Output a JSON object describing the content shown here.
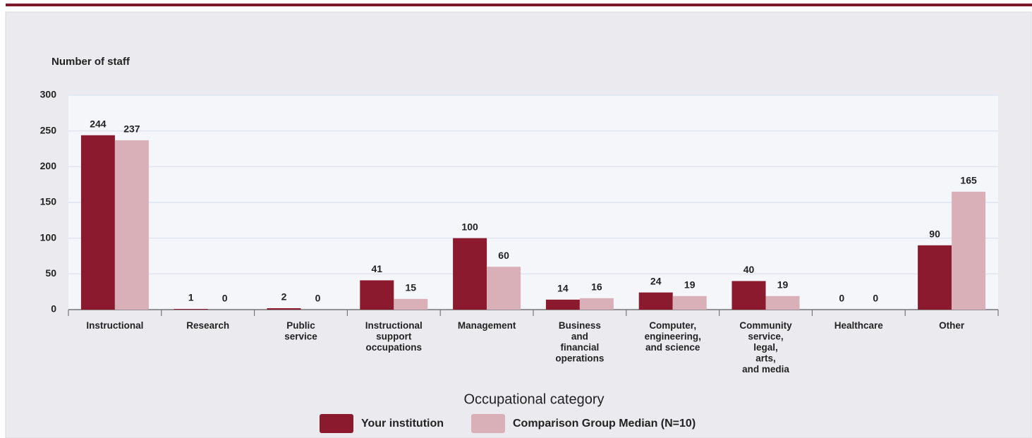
{
  "chart_data": {
    "type": "bar",
    "y_axis_label": "Number of staff",
    "x_axis_label": "Occupational category",
    "categories": [
      "Instructional",
      "Research",
      "Public\nservice",
      "Instructional\nsupport\noccupations",
      "Management",
      "Business\nand\nfinancial\noperations",
      "Computer,\nengineering,\nand science",
      "Community\nservice,\nlegal,\narts,\nand media",
      "Healthcare",
      "Other"
    ],
    "series": [
      {
        "name": "Your institution",
        "color": "#8b1a2e",
        "values": [
          244,
          1,
          2,
          41,
          100,
          14,
          24,
          40,
          0,
          90
        ]
      },
      {
        "name": "Comparison Group Median (N=10)",
        "color": "#d9b0b7",
        "values": [
          237,
          0,
          0,
          15,
          60,
          16,
          19,
          19,
          0,
          165
        ]
      }
    ],
    "ylim": [
      0,
      300
    ],
    "yticks": [
      0,
      50,
      100,
      150,
      200,
      250,
      300
    ],
    "grid": true
  }
}
